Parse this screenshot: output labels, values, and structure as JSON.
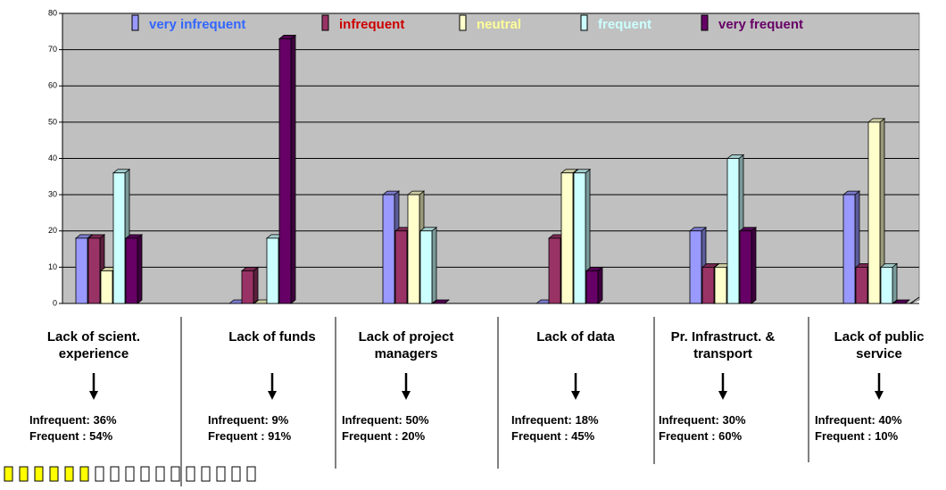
{
  "chart_data": {
    "type": "bar",
    "categories": [
      "Lack of scient. experience",
      "Lack of funds",
      "Lack of project managers",
      "Lack of data",
      "Pr. Infrastruct. & transport",
      "Lack of public service"
    ],
    "series": [
      {
        "name": "very infrequent",
        "color": "#9999ff",
        "values": [
          18,
          0,
          30,
          0,
          20,
          30
        ]
      },
      {
        "name": "infrequent",
        "color": "#993366",
        "values": [
          18,
          9,
          20,
          18,
          10,
          10
        ]
      },
      {
        "name": "neutral",
        "color": "#ffffcc",
        "values": [
          9,
          0,
          30,
          36,
          10,
          50
        ]
      },
      {
        "name": "frequent",
        "color": "#ccffff",
        "values": [
          36,
          18,
          20,
          36,
          40,
          10
        ]
      },
      {
        "name": "very frequent",
        "color": "#660066",
        "values": [
          18,
          73,
          0,
          9,
          20,
          0
        ]
      }
    ],
    "legend_text_colors": [
      "#3366ff",
      "#cc0000",
      "#ffff99",
      "#ccffff",
      "#660066"
    ],
    "ylim": [
      0,
      80
    ],
    "yticks": [
      0,
      10,
      20,
      30,
      40,
      50,
      60,
      70,
      80
    ],
    "grid": true,
    "annotations": [
      [
        "Infrequent: 36%",
        "Frequent : 54%"
      ],
      [
        "Infrequent: 9%",
        "Frequent : 91%"
      ],
      [
        "Infrequent: 50%",
        "Frequent : 20%"
      ],
      [
        "Infrequent: 18%",
        "Frequent : 45%"
      ],
      [
        "Infrequent: 30%",
        "Frequent : 60%"
      ],
      [
        "Infrequent: 40%",
        "Frequent : 10%"
      ]
    ]
  }
}
